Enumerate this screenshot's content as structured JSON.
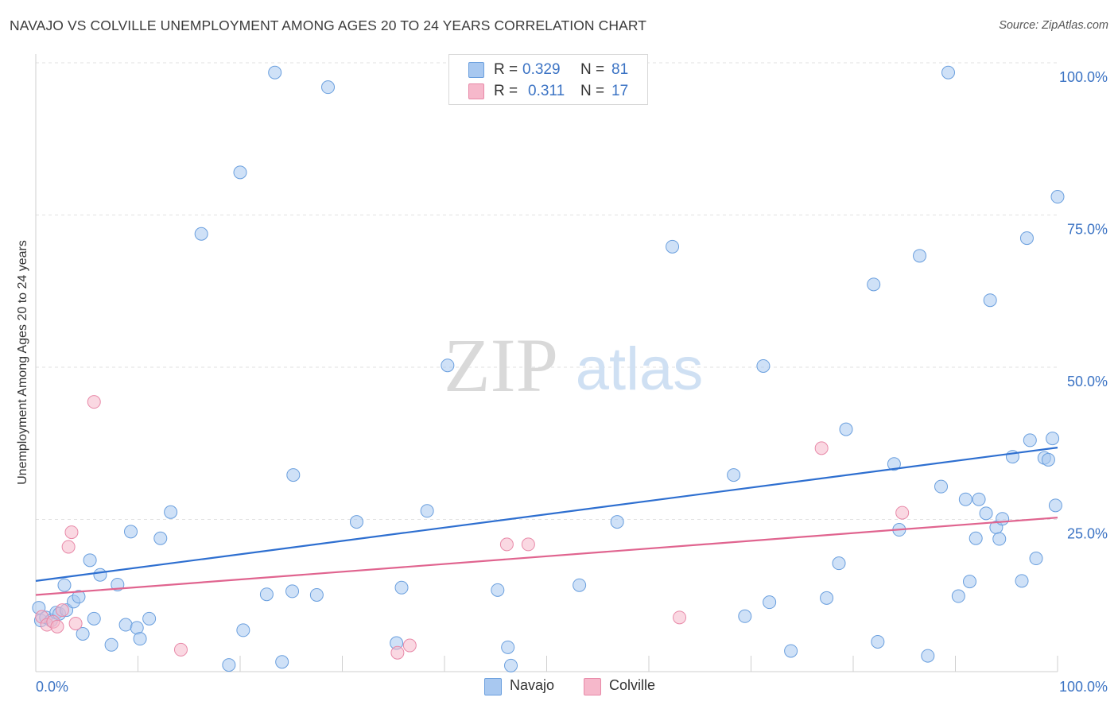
{
  "title": "NAVAJO VS COLVILLE UNEMPLOYMENT AMONG AGES 20 TO 24 YEARS CORRELATION CHART",
  "source": "Source: ZipAtlas.com",
  "watermark": {
    "zip": "ZIP",
    "atlas": "atlas"
  },
  "legend": {
    "navajo": {
      "r_label": "R =",
      "r_value": "0.329",
      "n_label": "N =",
      "n_value": "81"
    },
    "colville": {
      "r_label": "R =",
      "r_value": "0.311",
      "n_label": "N =",
      "n_value": "17"
    }
  },
  "colors": {
    "navajo_fill": "#a8c8f0",
    "navajo_stroke": "#6a9fde",
    "navajo_line": "#2e6fd0",
    "colville_fill": "#f6b8cb",
    "colville_stroke": "#e889a8",
    "colville_line": "#e0648f",
    "grid": "#e2e2e2",
    "axis_text": "#3b73c4"
  },
  "chart_data": {
    "type": "scatter",
    "xlabel": "",
    "ylabel": "Unemployment Among Ages 20 to 24 years",
    "xlim": [
      0,
      100
    ],
    "ylim": [
      0,
      100
    ],
    "x_tick_labels": [
      "0.0%",
      "100.0%"
    ],
    "y_tick_labels": [
      "25.0%",
      "50.0%",
      "75.0%",
      "100.0%"
    ],
    "y_ticks": [
      25,
      50,
      75,
      100
    ],
    "series": [
      {
        "name": "Navajo",
        "R": 0.329,
        "N": 81,
        "trend": [
          [
            0,
            14.9
          ],
          [
            100,
            36.8
          ]
        ],
        "points": [
          [
            0.3,
            10.5
          ],
          [
            0.5,
            8.4
          ],
          [
            1.0,
            8.9
          ],
          [
            1.5,
            8.4
          ],
          [
            2.0,
            9.7
          ],
          [
            2.3,
            9.5
          ],
          [
            2.8,
            14.2
          ],
          [
            3.0,
            10.1
          ],
          [
            3.7,
            11.5
          ],
          [
            4.2,
            12.3
          ],
          [
            4.6,
            6.2
          ],
          [
            5.3,
            18.3
          ],
          [
            5.7,
            8.7
          ],
          [
            6.3,
            15.9
          ],
          [
            7.4,
            4.4
          ],
          [
            8.0,
            14.3
          ],
          [
            8.8,
            7.7
          ],
          [
            9.3,
            23.0
          ],
          [
            9.9,
            7.2
          ],
          [
            10.2,
            5.4
          ],
          [
            11.1,
            8.7
          ],
          [
            12.2,
            21.9
          ],
          [
            13.2,
            26.2
          ],
          [
            16.2,
            71.9
          ],
          [
            18.9,
            1.1
          ],
          [
            20.3,
            6.8
          ],
          [
            22.6,
            12.7
          ],
          [
            23.4,
            98.4
          ],
          [
            24.1,
            1.6
          ],
          [
            25.1,
            13.2
          ],
          [
            25.2,
            32.3
          ],
          [
            27.5,
            12.6
          ],
          [
            28.6,
            96.0
          ],
          [
            31.4,
            24.6
          ],
          [
            35.3,
            4.7
          ],
          [
            35.8,
            13.8
          ],
          [
            38.3,
            26.4
          ],
          [
            40.3,
            50.3
          ],
          [
            45.2,
            13.4
          ],
          [
            46.2,
            4.0
          ],
          [
            46.5,
            1.0
          ],
          [
            53.2,
            14.2
          ],
          [
            56.9,
            24.6
          ],
          [
            62.3,
            69.8
          ],
          [
            68.3,
            32.3
          ],
          [
            69.4,
            9.1
          ],
          [
            71.8,
            11.4
          ],
          [
            71.2,
            50.2
          ],
          [
            73.9,
            3.4
          ],
          [
            77.4,
            12.1
          ],
          [
            78.6,
            17.8
          ],
          [
            79.3,
            39.8
          ],
          [
            82.0,
            63.6
          ],
          [
            82.4,
            4.9
          ],
          [
            84.0,
            34.1
          ],
          [
            84.5,
            23.3
          ],
          [
            86.5,
            68.3
          ],
          [
            87.3,
            2.6
          ],
          [
            89.3,
            98.4
          ],
          [
            88.6,
            30.4
          ],
          [
            90.3,
            12.4
          ],
          [
            91.4,
            14.8
          ],
          [
            91.0,
            28.3
          ],
          [
            92.0,
            21.9
          ],
          [
            92.3,
            28.3
          ],
          [
            93.0,
            26.0
          ],
          [
            93.4,
            61.0
          ],
          [
            94.0,
            23.7
          ],
          [
            94.3,
            21.8
          ],
          [
            94.6,
            25.1
          ],
          [
            95.6,
            35.3
          ],
          [
            96.5,
            14.9
          ],
          [
            97.3,
            38.0
          ],
          [
            97.9,
            18.6
          ],
          [
            98.7,
            35.1
          ],
          [
            99.1,
            34.8
          ],
          [
            99.5,
            38.3
          ],
          [
            99.8,
            27.3
          ],
          [
            97.0,
            71.2
          ],
          [
            100.0,
            78.0
          ],
          [
            20.0,
            82.0
          ]
        ]
      },
      {
        "name": "Colville",
        "R": 0.311,
        "N": 17,
        "trend": [
          [
            0,
            12.6
          ],
          [
            100,
            25.3
          ]
        ],
        "points": [
          [
            0.6,
            9.0
          ],
          [
            1.1,
            7.7
          ],
          [
            1.7,
            8.2
          ],
          [
            2.1,
            7.4
          ],
          [
            2.6,
            10.1
          ],
          [
            3.2,
            20.5
          ],
          [
            3.5,
            22.9
          ],
          [
            3.9,
            7.9
          ],
          [
            5.7,
            44.3
          ],
          [
            14.2,
            3.6
          ],
          [
            35.4,
            3.1
          ],
          [
            36.6,
            4.3
          ],
          [
            46.1,
            20.9
          ],
          [
            48.2,
            20.9
          ],
          [
            63.0,
            8.9
          ],
          [
            76.9,
            36.7
          ],
          [
            84.8,
            26.1
          ]
        ]
      }
    ]
  }
}
